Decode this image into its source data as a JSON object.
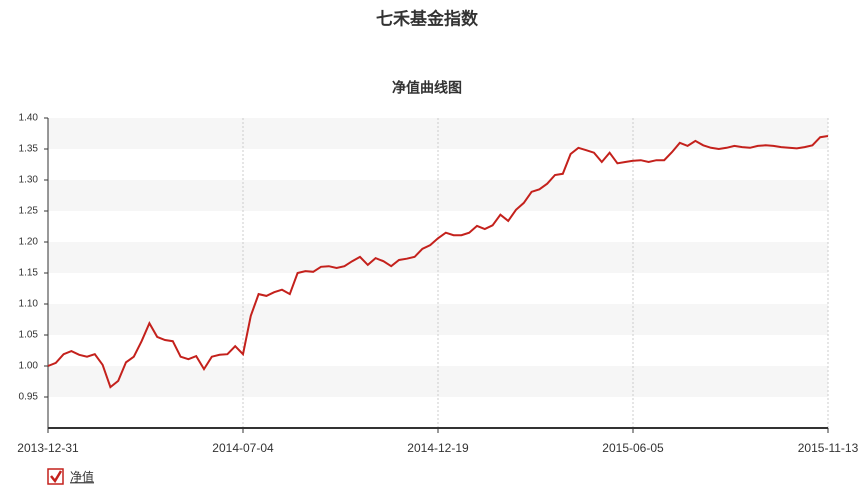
{
  "chart_data": {
    "type": "line",
    "title": "七禾基金指数",
    "subtitle": "净值曲线图",
    "categories": [
      "2013-12-31",
      null,
      null,
      null,
      null,
      null,
      null,
      null,
      null,
      null,
      null,
      null,
      null,
      null,
      null,
      null,
      null,
      null,
      null,
      null,
      null,
      null,
      null,
      null,
      null,
      "2014-07-04",
      null,
      null,
      null,
      null,
      null,
      null,
      null,
      null,
      null,
      null,
      null,
      null,
      null,
      null,
      null,
      null,
      null,
      null,
      null,
      null,
      null,
      null,
      null,
      null,
      "2014-12-19",
      null,
      null,
      null,
      null,
      null,
      null,
      null,
      null,
      null,
      null,
      null,
      null,
      null,
      null,
      null,
      null,
      null,
      null,
      null,
      null,
      null,
      null,
      null,
      null,
      "2015-06-05",
      null,
      null,
      null,
      null,
      null,
      null,
      null,
      null,
      null,
      null,
      null,
      null,
      null,
      null,
      null,
      null,
      null,
      null,
      null,
      null,
      null,
      null,
      null,
      null,
      "2015-11-13"
    ],
    "series": [
      {
        "name": "净值",
        "color": "#c4211c",
        "values": [
          1.0,
          1.005,
          1.019,
          1.024,
          1.018,
          1.015,
          1.019,
          1.002,
          0.966,
          0.976,
          1.006,
          1.015,
          1.04,
          1.069,
          1.047,
          1.042,
          1.04,
          1.015,
          1.011,
          1.016,
          0.995,
          1.015,
          1.018,
          1.019,
          1.032,
          1.019,
          1.081,
          1.116,
          1.113,
          1.119,
          1.123,
          1.116,
          1.15,
          1.153,
          1.152,
          1.16,
          1.161,
          1.158,
          1.161,
          1.169,
          1.176,
          1.163,
          1.174,
          1.169,
          1.161,
          1.171,
          1.173,
          1.176,
          1.189,
          1.195,
          1.206,
          1.215,
          1.211,
          1.211,
          1.215,
          1.226,
          1.221,
          1.227,
          1.244,
          1.234,
          1.252,
          1.263,
          1.281,
          1.285,
          1.294,
          1.308,
          1.31,
          1.342,
          1.352,
          1.348,
          1.344,
          1.329,
          1.344,
          1.327,
          1.329,
          1.331,
          1.332,
          1.329,
          1.332,
          1.332,
          1.345,
          1.36,
          1.355,
          1.363,
          1.356,
          1.352,
          1.35,
          1.352,
          1.355,
          1.353,
          1.352,
          1.355,
          1.356,
          1.355,
          1.353,
          1.352,
          1.351,
          1.353,
          1.356,
          1.369,
          1.371
        ]
      }
    ],
    "ylim": [
      0.9,
      1.4
    ],
    "yticks": [
      0.95,
      {
        "value": 1.0,
        "label": "1.00"
      },
      1.05,
      {
        "value": 1.1,
        "label": "1.10"
      },
      1.15,
      {
        "value": 1.2,
        "label": "1.20"
      },
      1.25,
      {
        "value": 1.3,
        "label": "1.30"
      },
      1.35,
      {
        "value": 1.4,
        "label": "1.40"
      }
    ],
    "grid": true
  }
}
